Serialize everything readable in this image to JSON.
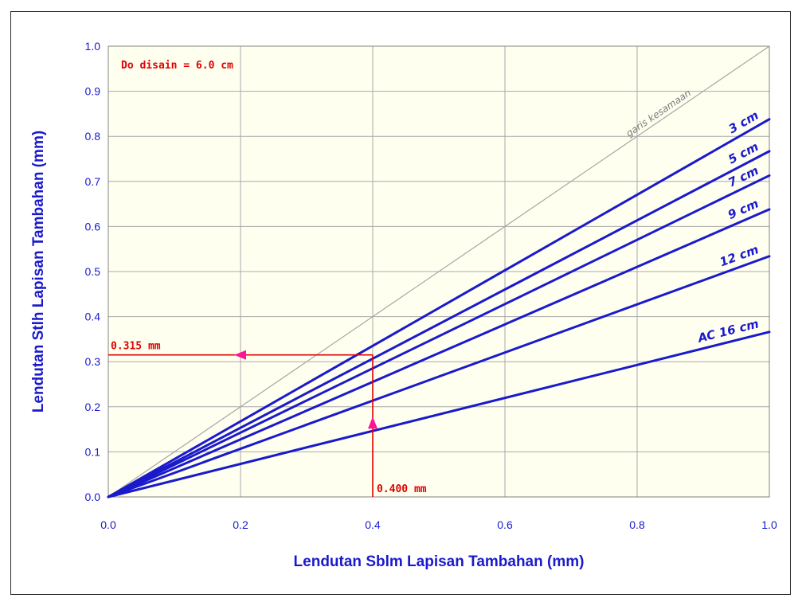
{
  "chart_data": {
    "type": "line",
    "title": "",
    "xlabel": "Lendutan Sblm Lapisan Tambahan (mm)",
    "ylabel": "Lendutan Stlh Lapisan Tambahan (mm)",
    "xlim": [
      0,
      1
    ],
    "ylim": [
      0,
      1
    ],
    "x_ticks": [
      "0.0",
      "0.2",
      "0.4",
      "0.6",
      "0.8",
      "1.0"
    ],
    "y_ticks": [
      "0.0",
      "0.1",
      "0.2",
      "0.3",
      "0.4",
      "0.5",
      "0.6",
      "0.7",
      "0.8",
      "0.9",
      "1.0"
    ],
    "grid": true,
    "background": "#fffff0",
    "series_color": "#1a1acc",
    "equality_line": {
      "label": "garis kesamaan",
      "x": [
        0,
        1
      ],
      "y": [
        0,
        1
      ],
      "color": "#a6a6a6"
    },
    "series": [
      {
        "name": "3 cm",
        "x": [
          0,
          1
        ],
        "y": [
          0,
          0.838
        ]
      },
      {
        "name": "5 cm",
        "x": [
          0,
          1
        ],
        "y": [
          0,
          0.767
        ]
      },
      {
        "name": "7 cm",
        "x": [
          0,
          1
        ],
        "y": [
          0,
          0.713
        ]
      },
      {
        "name": "9 cm",
        "x": [
          0,
          1
        ],
        "y": [
          0,
          0.638
        ]
      },
      {
        "name": "12 cm",
        "x": [
          0,
          1
        ],
        "y": [
          0,
          0.534
        ]
      },
      {
        "name": "AC 16 cm",
        "x": [
          0,
          1
        ],
        "y": [
          0,
          0.366
        ]
      }
    ],
    "annotations": {
      "design_note": "Do disain = 6.0 cm",
      "input_x": 0.4,
      "input_label": "0.400 mm",
      "output_y": 0.315,
      "output_label": "0.315 mm",
      "color": "#e00000",
      "arrow_color": "#ff1493"
    }
  }
}
